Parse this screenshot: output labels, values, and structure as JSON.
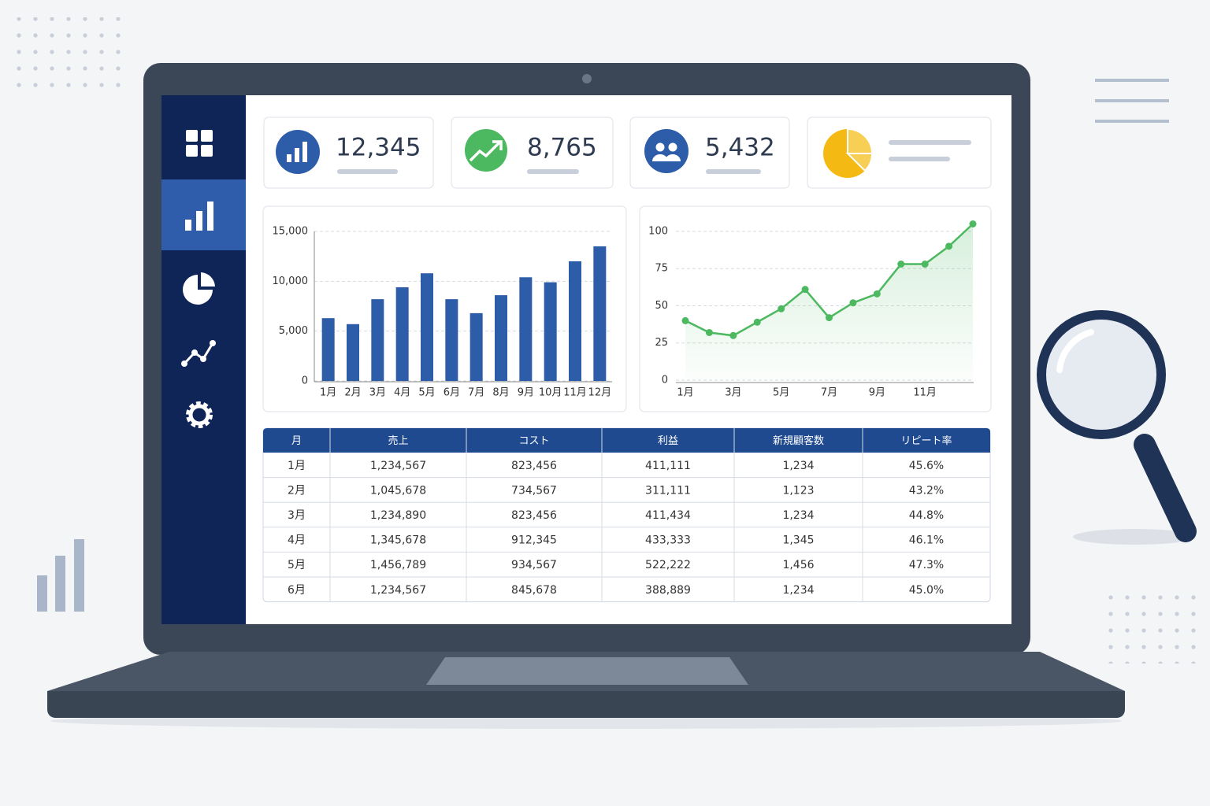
{
  "kpis": [
    {
      "value": "12,345"
    },
    {
      "value": "8,765"
    },
    {
      "value": "5,432"
    }
  ],
  "chart_data": [
    {
      "type": "bar",
      "categories": [
        "1月",
        "2月",
        "3月",
        "4月",
        "5月",
        "6月",
        "7月",
        "8月",
        "9月",
        "10月",
        "11月",
        "12月"
      ],
      "values": [
        6300,
        5700,
        8200,
        9400,
        10800,
        8200,
        6800,
        8600,
        10400,
        9900,
        12000,
        13500
      ],
      "color": "#2d5ca8",
      "ylim": [
        0,
        15000
      ],
      "yticks": [
        0,
        {
          "value": 5000,
          "label": "5,000"
        },
        {
          "value": 10000,
          "label": "10,000"
        },
        {
          "value": 15000,
          "label": "15,000"
        }
      ],
      "grid": true
    },
    {
      "type": "line",
      "categories": [
        "1月",
        null,
        "3月",
        null,
        "5月",
        null,
        "7月",
        null,
        "9月",
        null,
        "11月",
        null,
        null
      ],
      "values": [
        40,
        32,
        30,
        39,
        48,
        61,
        42,
        52,
        58,
        78,
        78,
        90,
        105
      ],
      "color": "#4cb860",
      "ylim": [
        0,
        105
      ],
      "yticks": [
        0,
        25,
        50,
        75,
        100
      ],
      "grid": true
    }
  ],
  "table": {
    "header": [
      "月",
      "売上",
      "コスト",
      "利益",
      "新規顧客数",
      "リピート率"
    ],
    "rows": [
      [
        "1月",
        "1,234,567",
        "823,456",
        "411,111",
        "1,234",
        "45.6%"
      ],
      [
        "2月",
        "1,045,678",
        "734,567",
        "311,111",
        "1,123",
        "43.2%"
      ],
      [
        "3月",
        "1,234,890",
        "823,456",
        "411,434",
        "1,234",
        "44.8%"
      ],
      [
        "4月",
        "1,345,678",
        "912,345",
        "433,333",
        "1,345",
        "46.1%"
      ],
      [
        "5月",
        "1,456,789",
        "934,567",
        "522,222",
        "1,456",
        "47.3%"
      ],
      [
        "6月",
        "1,234,567",
        "845,678",
        "388,889",
        "1,234",
        "45.0%"
      ]
    ]
  }
}
